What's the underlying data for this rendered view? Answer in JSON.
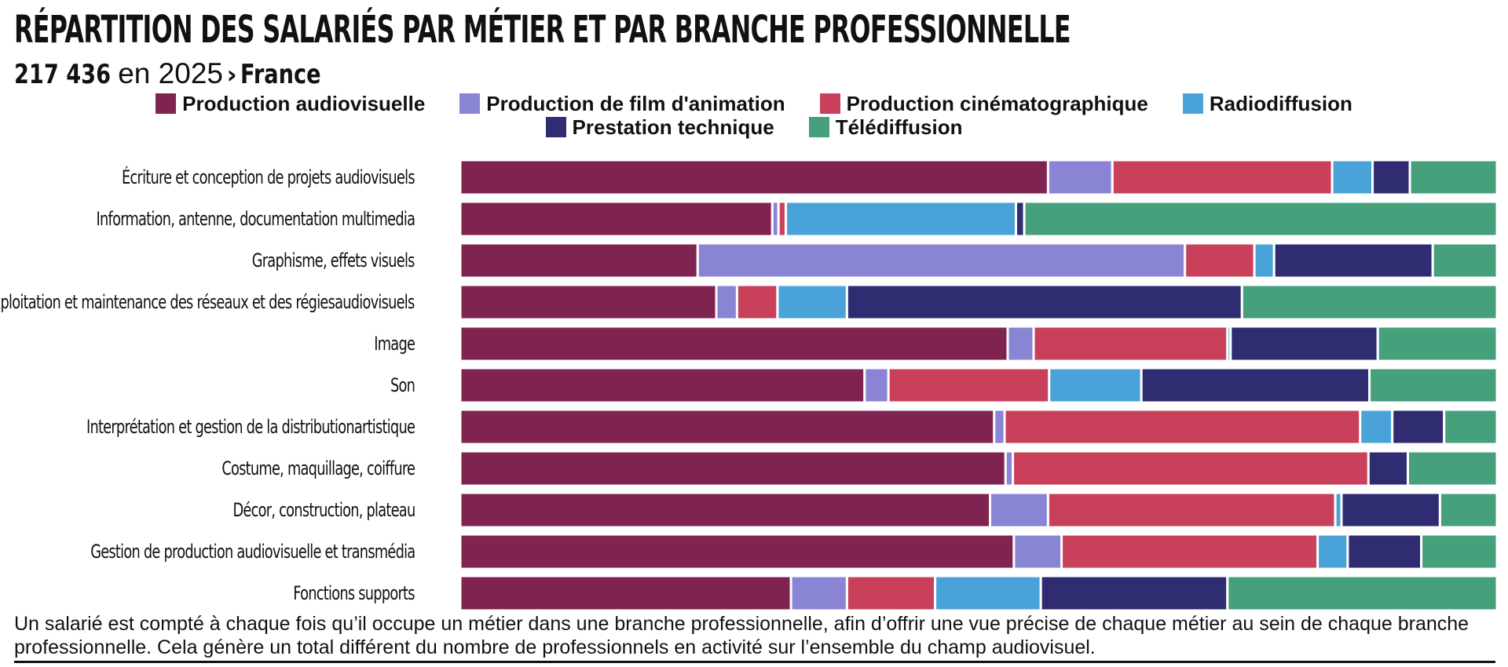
{
  "header": {
    "title": "RÉPARTITION DES SALARIÉS PAR MÉTIER ET PAR BRANCHE PROFESSIONNELLE",
    "count": "217 436",
    "year_text": "en 2025",
    "separator": "›",
    "location": "France"
  },
  "note": "Un salarié est compté à chaque fois qu’il occupe un métier dans une branche professionnelle, afin d’offrir une vue précise de chaque métier au sein de chaque branche professionnelle. Cela génère un total différent du nombre de professionnels en activité sur l’ensemble du champ audiovisuel.",
  "chart_data": {
    "type": "bar",
    "orientation": "horizontal",
    "stacked": "100%",
    "xlim": [
      0,
      100
    ],
    "legend_position": "top",
    "grid": false,
    "categories": [
      "Écriture et conception de projets audiovisuels",
      "Information, antenne, documentation multimedia",
      "Graphisme, effets visuels",
      "Exploitation et maintenance des réseaux et des régies audiovisuels",
      "Image",
      "Son",
      "Interprétation et gestion de la distribution artistique",
      "Costume, maquillage, coiffure",
      "Décor, construction, plateau",
      "Gestion de production audiovisuelle et transmédia",
      "Fonctions supports"
    ],
    "series": [
      {
        "name": "Production audiovisuelle",
        "color": "#7F2350",
        "values": [
          56.7,
          30.1,
          22.9,
          24.7,
          52.8,
          39.0,
          51.5,
          52.6,
          51.1,
          53.4,
          31.9
        ]
      },
      {
        "name": "Production de film d'animation",
        "color": "#8A84D4",
        "values": [
          6.2,
          0.6,
          47.0,
          2.0,
          2.5,
          2.3,
          1.0,
          0.7,
          5.6,
          4.6,
          5.4
        ]
      },
      {
        "name": "Production cinématographique",
        "color": "#C9405A",
        "values": [
          21.2,
          0.7,
          6.7,
          3.9,
          18.7,
          15.5,
          34.3,
          34.3,
          27.7,
          24.7,
          8.5
        ]
      },
      {
        "name": "Radiodiffusion",
        "color": "#4AA3D8",
        "values": [
          3.9,
          22.2,
          1.9,
          6.7,
          0.3,
          8.9,
          3.1,
          0.0,
          0.6,
          2.9,
          10.2
        ]
      },
      {
        "name": "Prestation technique",
        "color": "#2F2C72",
        "values": [
          3.6,
          0.8,
          15.3,
          38.1,
          14.2,
          22.0,
          5.0,
          3.8,
          9.5,
          7.1,
          18.0
        ]
      },
      {
        "name": "Télédiffusion",
        "color": "#46A07C",
        "values": [
          8.4,
          45.6,
          6.2,
          24.6,
          11.5,
          12.3,
          5.1,
          8.6,
          5.5,
          7.3,
          26.0
        ]
      }
    ]
  }
}
